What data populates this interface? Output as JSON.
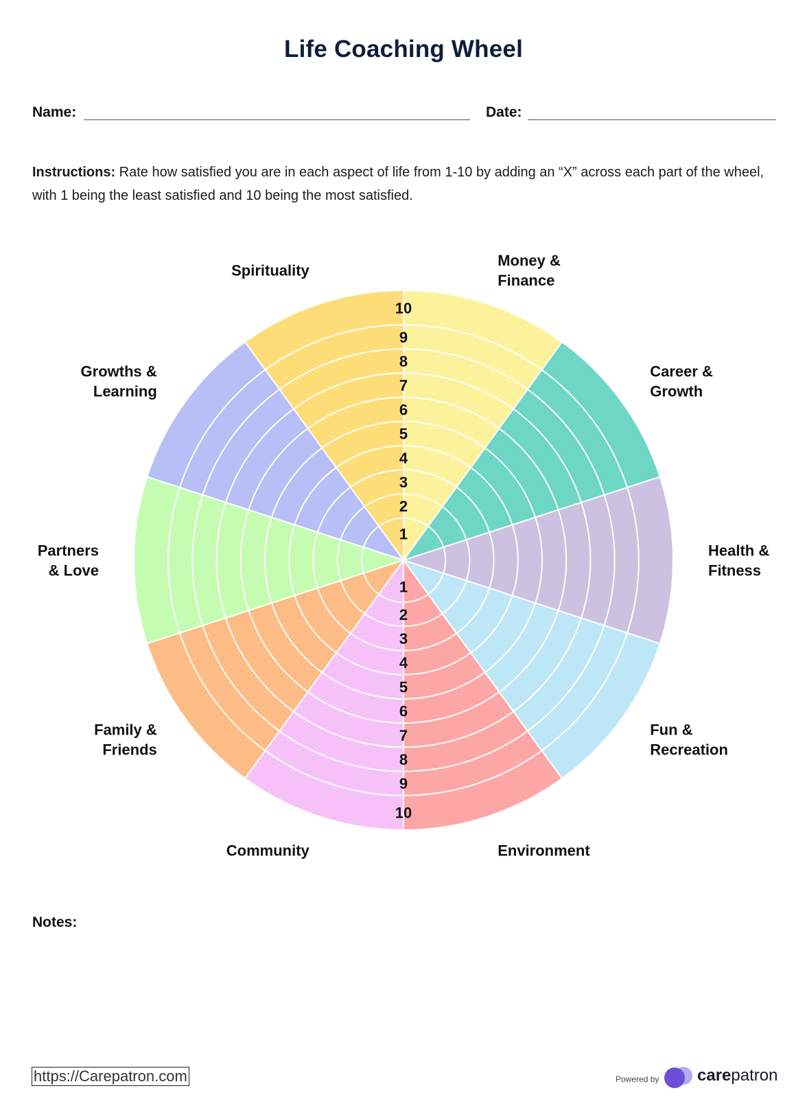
{
  "title": "Life Coaching Wheel",
  "name_label": "Name:",
  "date_label": "Date:",
  "instructions": {
    "lead": "Instructions:",
    "text": " Rate how satisfied you are in each aspect of life from 1-10 by adding an “X” across each part of the wheel, with 1 being the least satisfied and 10 being the most satisfied."
  },
  "wheel": {
    "scale_max": 10,
    "scale_top": [
      "1",
      "2",
      "3",
      "4",
      "5",
      "6",
      "7",
      "8",
      "9",
      "10"
    ],
    "scale_bottom": [
      "1",
      "2",
      "3",
      "4",
      "5",
      "6",
      "7",
      "8",
      "9",
      "10"
    ],
    "segments": [
      {
        "label": [
          "Money &",
          "Finance"
        ],
        "color": "#fdf29c"
      },
      {
        "label": [
          "Career &",
          "Growth"
        ],
        "color": "#6dd6c4"
      },
      {
        "label": [
          "Health &",
          "Fitness"
        ],
        "color": "#ccc1e0"
      },
      {
        "label": [
          "Fun &",
          "Recreation"
        ],
        "color": "#bde7f6"
      },
      {
        "label": [
          "Environment"
        ],
        "color": "#fda6a6"
      },
      {
        "label": [
          "Community"
        ],
        "color": "#f6c1f8"
      },
      {
        "label": [
          "Family &",
          "Friends"
        ],
        "color": "#fdbb85"
      },
      {
        "label": [
          "Partners",
          "& Love"
        ],
        "color": "#c4fcb2"
      },
      {
        "label": [
          "Growths &",
          "Learning"
        ],
        "color": "#b8bef6"
      },
      {
        "label": [
          "Spirituality"
        ],
        "color": "#fddd78"
      }
    ]
  },
  "notes_label": "Notes:",
  "footer": {
    "url": "https://Carepatron.com",
    "powered_by": "Powered by",
    "brand_bold": "care",
    "brand_rest": "patron",
    "brand_color": "#6b4fd8"
  }
}
